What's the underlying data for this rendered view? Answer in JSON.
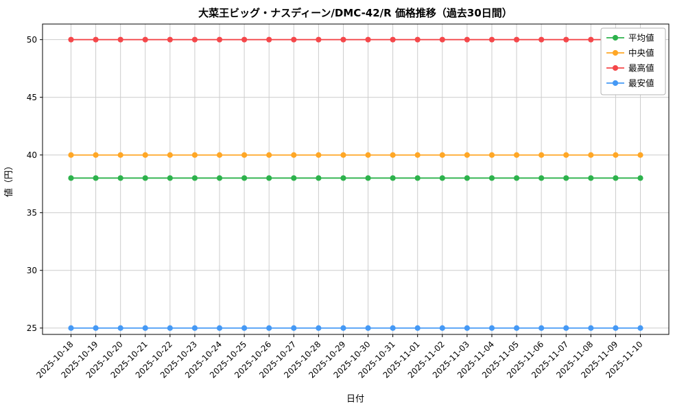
{
  "chart_data": {
    "type": "line",
    "title": "大菜王ビッグ・ナスディーン/DMC-42/R 価格推移（過去30日間）",
    "xlabel": "日付",
    "ylabel": "値（円）",
    "x": [
      "2025-10-18",
      "2025-10-19",
      "2025-10-20",
      "2025-10-21",
      "2025-10-22",
      "2025-10-23",
      "2025-10-24",
      "2025-10-25",
      "2025-10-26",
      "2025-10-27",
      "2025-10-28",
      "2025-10-29",
      "2025-10-30",
      "2025-10-31",
      "2025-11-01",
      "2025-11-02",
      "2025-11-03",
      "2025-11-04",
      "2025-11-05",
      "2025-11-06",
      "2025-11-07",
      "2025-11-08",
      "2025-11-09",
      "2025-11-10"
    ],
    "series": [
      {
        "name": "平均値",
        "color": "#2db24c",
        "values": [
          38,
          38,
          38,
          38,
          38,
          38,
          38,
          38,
          38,
          38,
          38,
          38,
          38,
          38,
          38,
          38,
          38,
          38,
          38,
          38,
          38,
          38,
          38,
          38
        ]
      },
      {
        "name": "中央値",
        "color": "#ffa726",
        "values": [
          40,
          40,
          40,
          40,
          40,
          40,
          40,
          40,
          40,
          40,
          40,
          40,
          40,
          40,
          40,
          40,
          40,
          40,
          40,
          40,
          40,
          40,
          40,
          40
        ]
      },
      {
        "name": "最高値",
        "color": "#f4474a",
        "values": [
          50,
          50,
          50,
          50,
          50,
          50,
          50,
          50,
          50,
          50,
          50,
          50,
          50,
          50,
          50,
          50,
          50,
          50,
          50,
          50,
          50,
          50,
          50,
          50
        ]
      },
      {
        "name": "最安値",
        "color": "#4599f5",
        "values": [
          25,
          25,
          25,
          25,
          25,
          25,
          25,
          25,
          25,
          25,
          25,
          25,
          25,
          25,
          25,
          25,
          25,
          25,
          25,
          25,
          25,
          25,
          25,
          25
        ]
      }
    ],
    "yticks": [
      25,
      30,
      35,
      40,
      45,
      50
    ],
    "ylim": [
      24.45,
      51.35
    ],
    "grid": true,
    "legend_position": "upper right",
    "background": "#ffffff"
  }
}
